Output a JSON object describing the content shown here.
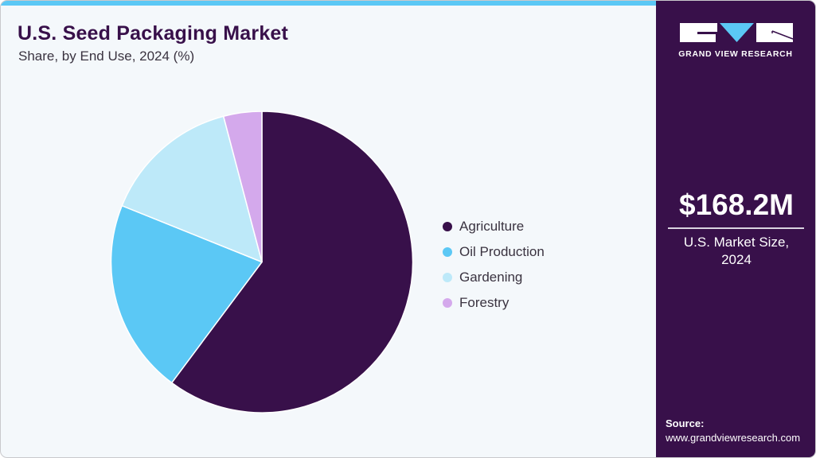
{
  "header": {
    "title": "U.S. Seed Packaging Market",
    "subtitle": "Share, by End Use, 2024 (%)"
  },
  "colors": {
    "accent_bar": "#5bc8f5",
    "sidebar_bg": "#38104a",
    "background": "#f4f8fb"
  },
  "chart_data": {
    "type": "pie",
    "title": "U.S. Seed Packaging Market",
    "subtitle": "Share, by End Use, 2024 (%)",
    "categories": [
      "Agriculture",
      "Oil Production",
      "Gardening",
      "Forestry"
    ],
    "values": [
      60.2,
      20.9,
      14.8,
      4.1
    ],
    "colors": [
      "#38104a",
      "#5bc8f5",
      "#bde9f9",
      "#d4a9ec"
    ],
    "start_angle_deg": 0,
    "direction": "clockwise",
    "legend_position": "right",
    "data_labels": false
  },
  "legend": {
    "items": [
      {
        "label": "Agriculture",
        "color": "#38104a"
      },
      {
        "label": "Oil Production",
        "color": "#5bc8f5"
      },
      {
        "label": "Gardening",
        "color": "#bde9f9"
      },
      {
        "label": "Forestry",
        "color": "#d4a9ec"
      }
    ]
  },
  "sidebar": {
    "logo_text": "GRAND VIEW RESEARCH",
    "market_value": "$168.2M",
    "market_label_line1": "U.S. Market Size,",
    "market_label_line2": "2024",
    "source_label": "Source:",
    "source_url": "www.grandviewresearch.com"
  }
}
